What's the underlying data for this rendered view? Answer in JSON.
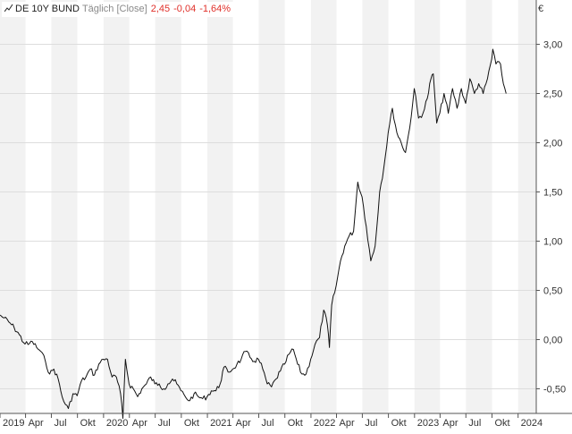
{
  "legend": {
    "name": "DE 10Y BUND",
    "frequency": "Täglich [Close]",
    "last": "2,45",
    "change": "-0,04",
    "change_pct": "-1,64%",
    "negative_color": "#e0302a"
  },
  "currency": "€",
  "colors": {
    "line": "#111111",
    "band": "#f2f2f2",
    "grid": "#dddddd",
    "axis": "#555555"
  },
  "chart_data": {
    "type": "line",
    "title": "",
    "xlabel": "",
    "ylabel": "",
    "xlim": [
      "2019-01-01",
      "2024-03-05"
    ],
    "ylim": [
      -0.75,
      3.45
    ],
    "yticks": [
      -0.5,
      0.0,
      0.5,
      1.0,
      1.5,
      2.0,
      2.5,
      3.0
    ],
    "ytick_labels": [
      "-0,50",
      "0,00",
      "0,50",
      "1,00",
      "1,50",
      "2,00",
      "2,50",
      "3,00"
    ],
    "xticks": [
      "2019-01-01",
      "2019-04-01",
      "2019-07-01",
      "2019-10-01",
      "2020-01-01",
      "2020-04-01",
      "2020-07-01",
      "2020-10-01",
      "2021-01-01",
      "2021-04-01",
      "2021-07-01",
      "2021-10-01",
      "2022-01-01",
      "2022-04-01",
      "2022-07-01",
      "2022-10-01",
      "2023-01-01",
      "2023-04-01",
      "2023-07-01",
      "2023-10-01",
      "2024-01-01"
    ],
    "xtick_labels": [
      "2019",
      "Apr",
      "Jul",
      "Okt",
      "2020",
      "Apr",
      "Jul",
      "Okt",
      "2021",
      "Apr",
      "Jul",
      "Okt",
      "2022",
      "Apr",
      "Jul",
      "Okt",
      "2023",
      "Apr",
      "Jul",
      "Okt",
      "2024"
    ],
    "grid": true,
    "series": [
      {
        "name": "DE 10Y BUND",
        "x": [
          "2018-12-31",
          "2019-01-15",
          "2019-02-01",
          "2019-02-20",
          "2019-03-10",
          "2019-03-25",
          "2019-04-10",
          "2019-04-25",
          "2019-05-10",
          "2019-05-25",
          "2019-06-10",
          "2019-06-25",
          "2019-07-10",
          "2019-07-25",
          "2019-08-08",
          "2019-08-20",
          "2019-08-30",
          "2019-09-15",
          "2019-09-30",
          "2019-10-15",
          "2019-10-31",
          "2019-11-15",
          "2019-11-30",
          "2019-12-15",
          "2019-12-31",
          "2020-01-15",
          "2020-01-31",
          "2020-02-15",
          "2020-03-01",
          "2020-03-09",
          "2020-03-18",
          "2020-03-31",
          "2020-04-15",
          "2020-04-30",
          "2020-05-15",
          "2020-05-31",
          "2020-06-15",
          "2020-06-30",
          "2020-07-15",
          "2020-07-31",
          "2020-08-15",
          "2020-08-31",
          "2020-09-15",
          "2020-09-30",
          "2020-10-15",
          "2020-10-31",
          "2020-11-15",
          "2020-11-30",
          "2020-12-15",
          "2020-12-31",
          "2021-01-15",
          "2021-01-31",
          "2021-02-15",
          "2021-02-28",
          "2021-03-15",
          "2021-03-31",
          "2021-04-15",
          "2021-04-30",
          "2021-05-15",
          "2021-05-31",
          "2021-06-15",
          "2021-06-30",
          "2021-07-15",
          "2021-07-31",
          "2021-08-15",
          "2021-08-31",
          "2021-09-15",
          "2021-09-30",
          "2021-10-15",
          "2021-10-31",
          "2021-11-15",
          "2021-11-30",
          "2021-12-15",
          "2021-12-31",
          "2022-01-15",
          "2022-01-31",
          "2022-02-15",
          "2022-02-28",
          "2022-03-07",
          "2022-03-15",
          "2022-03-31",
          "2022-04-15",
          "2022-04-30",
          "2022-05-15",
          "2022-05-31",
          "2022-06-15",
          "2022-06-30",
          "2022-07-15",
          "2022-07-31",
          "2022-08-15",
          "2022-08-31",
          "2022-09-15",
          "2022-09-30",
          "2022-10-15",
          "2022-10-31",
          "2022-11-15",
          "2022-11-30",
          "2022-12-15",
          "2022-12-31",
          "2023-01-15",
          "2023-01-31",
          "2023-02-15",
          "2023-02-28",
          "2023-03-08",
          "2023-03-20",
          "2023-03-31",
          "2023-04-15",
          "2023-04-30",
          "2023-05-15",
          "2023-05-31",
          "2023-06-15",
          "2023-06-30",
          "2023-07-15",
          "2023-07-31",
          "2023-08-15",
          "2023-08-31",
          "2023-09-15",
          "2023-09-30",
          "2023-10-04",
          "2023-10-15",
          "2023-10-31",
          "2023-11-10",
          "2023-11-20"
        ],
        "y": [
          0.25,
          0.22,
          0.18,
          0.12,
          0.05,
          -0.03,
          -0.05,
          -0.02,
          -0.08,
          -0.12,
          -0.22,
          -0.35,
          -0.3,
          -0.4,
          -0.58,
          -0.66,
          -0.7,
          -0.55,
          -0.57,
          -0.42,
          -0.38,
          -0.3,
          -0.36,
          -0.25,
          -0.2,
          -0.2,
          -0.38,
          -0.38,
          -0.55,
          -0.8,
          -0.2,
          -0.45,
          -0.5,
          -0.58,
          -0.5,
          -0.45,
          -0.38,
          -0.45,
          -0.45,
          -0.5,
          -0.45,
          -0.4,
          -0.45,
          -0.52,
          -0.58,
          -0.62,
          -0.55,
          -0.58,
          -0.6,
          -0.58,
          -0.52,
          -0.52,
          -0.45,
          -0.28,
          -0.33,
          -0.3,
          -0.25,
          -0.2,
          -0.12,
          -0.18,
          -0.22,
          -0.2,
          -0.3,
          -0.45,
          -0.48,
          -0.4,
          -0.32,
          -0.25,
          -0.15,
          -0.1,
          -0.25,
          -0.35,
          -0.35,
          -0.2,
          -0.05,
          0.02,
          0.3,
          0.15,
          -0.08,
          0.35,
          0.55,
          0.8,
          0.95,
          1.05,
          1.1,
          1.6,
          1.45,
          1.15,
          0.8,
          0.95,
          1.5,
          1.75,
          2.1,
          2.35,
          2.1,
          2.0,
          1.9,
          2.15,
          2.55,
          2.25,
          2.3,
          2.45,
          2.65,
          2.7,
          2.2,
          2.3,
          2.5,
          2.3,
          2.55,
          2.35,
          2.55,
          2.4,
          2.65,
          2.5,
          2.6,
          2.5,
          2.65,
          2.85,
          2.95,
          2.8,
          2.8,
          2.6,
          2.5
        ]
      }
    ]
  }
}
